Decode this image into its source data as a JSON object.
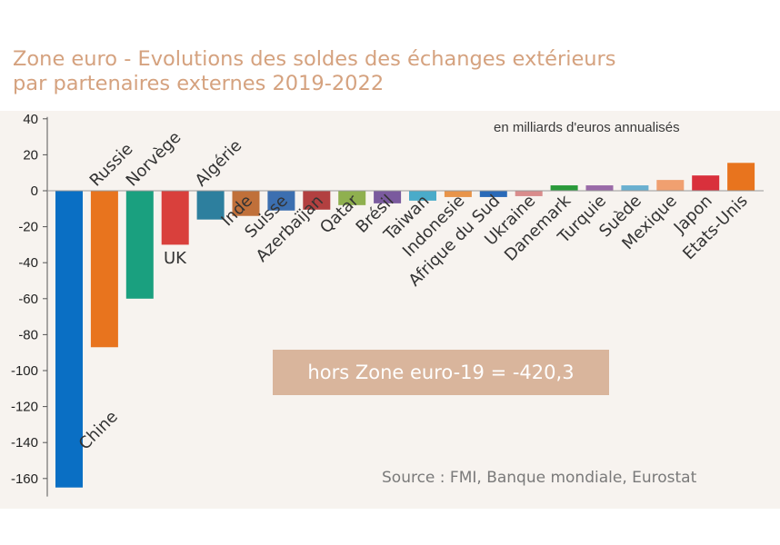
{
  "title_line1": "Zone euro - Evolutions des soldes des échanges extérieurs",
  "title_line2": "par partenaires externes 2019-2022",
  "unit_note": "en milliards d'euros annualisés",
  "callout": "hors Zone euro-19 = -420,3",
  "source": "Source :  FMI, Banque mondiale, Eurostat",
  "chart_data": {
    "type": "bar",
    "title": "Zone euro - Evolutions des soldes des échanges extérieurs par partenaires externes 2019-2022",
    "ylabel": "en milliards d'euros annualisés",
    "ylim": [
      -170,
      40
    ],
    "yticks": [
      40,
      20,
      0,
      -20,
      -40,
      -60,
      -80,
      -100,
      -120,
      -140,
      -160
    ],
    "categories": [
      "Chine",
      "Russie",
      "Norvège",
      "UK",
      "Algérie",
      "Inde",
      "Suisse",
      "Azerbaïjan",
      "Qatar",
      "Brésil",
      "Taiwan",
      "Indonesie",
      "Afrique du Sud",
      "Ukraine",
      "Danemark",
      "Turquie",
      "Suède",
      "Mexique",
      "Japon",
      "Etats-Unis"
    ],
    "values": [
      -165,
      -87,
      -60,
      -30,
      -16,
      -14,
      -11,
      -10.5,
      -8,
      -7,
      -5.5,
      -3.5,
      -3.5,
      -3,
      3,
      3,
      3,
      6,
      8.5,
      15.5
    ],
    "colors": [
      "#0a6fc4",
      "#e8741e",
      "#1aa07f",
      "#d9403c",
      "#2d7f9e",
      "#c0703a",
      "#3c6fb0",
      "#b24040",
      "#8fb04f",
      "#7a5a9e",
      "#4aabc9",
      "#e8944a",
      "#2a6ab8",
      "#d98c8c",
      "#2a9a3a",
      "#9a6aa8",
      "#6ab0d0",
      "#f0a070",
      "#d9303c",
      "#e8741e"
    ]
  }
}
